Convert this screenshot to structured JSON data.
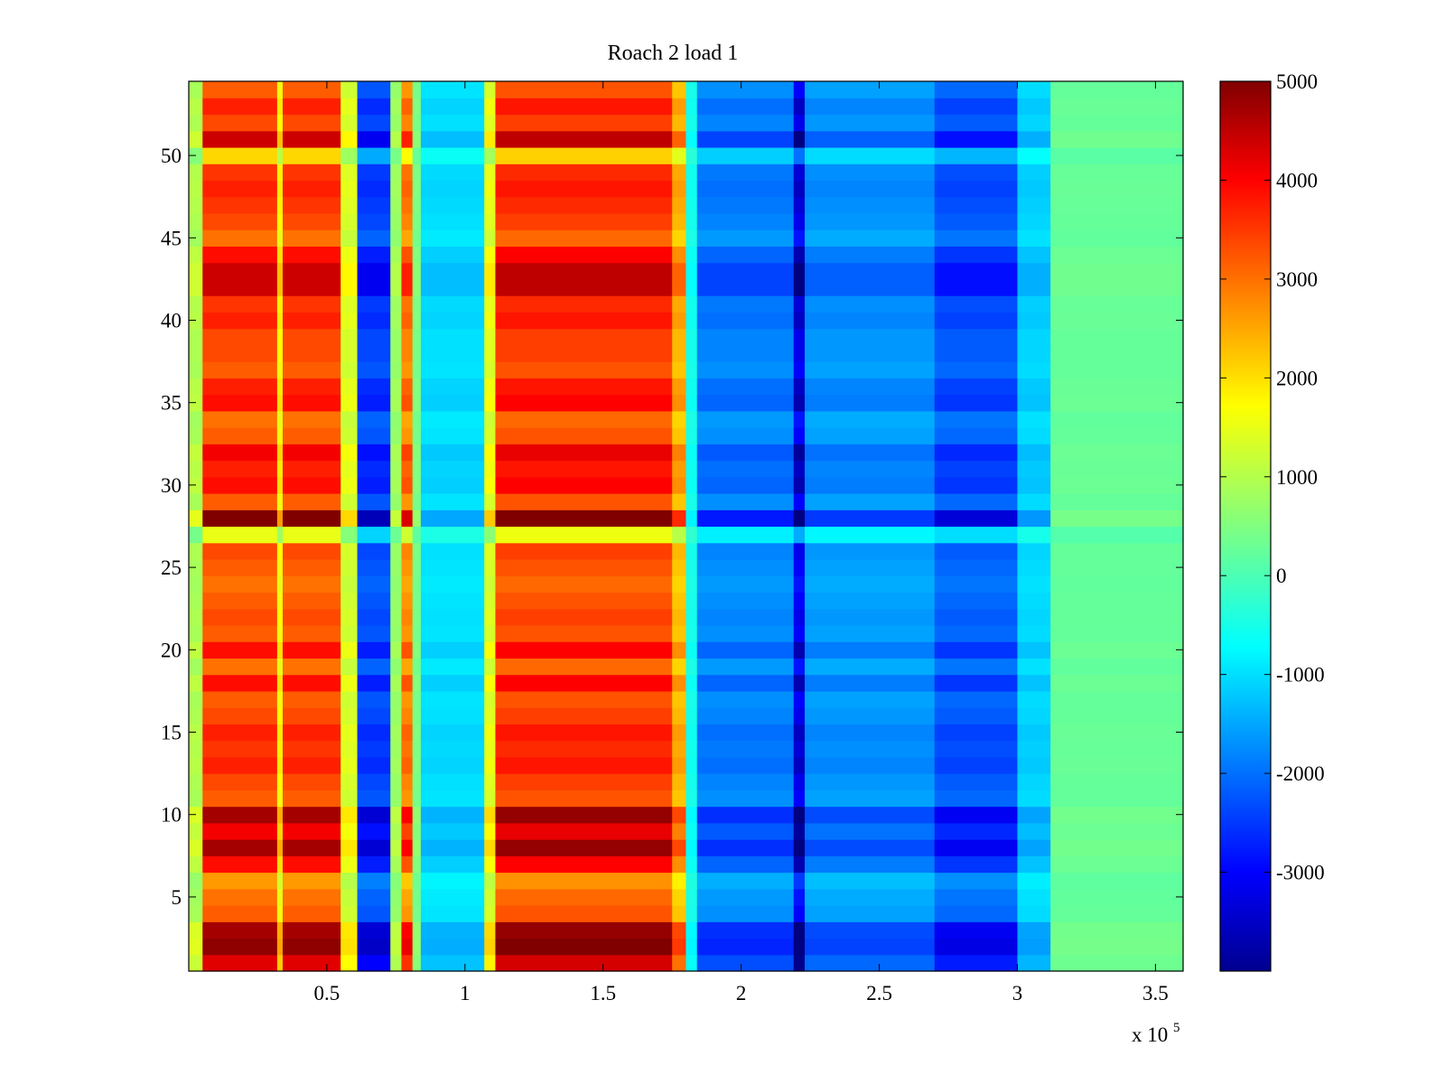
{
  "chart_data": {
    "type": "heatmap",
    "title": "Roach 2 load 1",
    "xlabel": "",
    "ylabel": "",
    "x_multiplier_label": {
      "base": "x 10",
      "exponent": "5"
    },
    "xlim": [
      0,
      360000
    ],
    "ylim": [
      0.5,
      54.5
    ],
    "x_ticks": [
      {
        "value": 50000,
        "label": "0.5"
      },
      {
        "value": 100000,
        "label": "1"
      },
      {
        "value": 150000,
        "label": "1.5"
      },
      {
        "value": 200000,
        "label": "2"
      },
      {
        "value": 250000,
        "label": "2.5"
      },
      {
        "value": 300000,
        "label": "3"
      },
      {
        "value": 350000,
        "label": "3.5"
      }
    ],
    "y_ticks": [
      {
        "value": 5,
        "label": "5"
      },
      {
        "value": 10,
        "label": "10"
      },
      {
        "value": 15,
        "label": "15"
      },
      {
        "value": 20,
        "label": "20"
      },
      {
        "value": 25,
        "label": "25"
      },
      {
        "value": 30,
        "label": "30"
      },
      {
        "value": 35,
        "label": "35"
      },
      {
        "value": 40,
        "label": "40"
      },
      {
        "value": 45,
        "label": "45"
      },
      {
        "value": 50,
        "label": "50"
      }
    ],
    "colorbar": {
      "colormap": "jet",
      "range": [
        -4000,
        5000
      ],
      "ticks": [
        {
          "value": 5000,
          "label": "5000"
        },
        {
          "value": 4000,
          "label": "4000"
        },
        {
          "value": 3000,
          "label": "3000"
        },
        {
          "value": 2000,
          "label": "2000"
        },
        {
          "value": 1000,
          "label": "1000"
        },
        {
          "value": 0,
          "label": "0"
        },
        {
          "value": -1000,
          "label": "-1000"
        },
        {
          "value": -2000,
          "label": "-2000"
        },
        {
          "value": -3000,
          "label": "-3000"
        }
      ]
    },
    "rows": 54,
    "column_bands": [
      {
        "x_start": 0,
        "x_end": 5000,
        "base": 1000
      },
      {
        "x_start": 5000,
        "x_end": 32000,
        "base": 3600
      },
      {
        "x_start": 32000,
        "x_end": 34000,
        "base": 1800
      },
      {
        "x_start": 34000,
        "x_end": 55000,
        "base": 3600
      },
      {
        "x_start": 55000,
        "x_end": 61000,
        "base": 1400
      },
      {
        "x_start": 61000,
        "x_end": 73000,
        "base": -2500
      },
      {
        "x_start": 73000,
        "x_end": 77000,
        "base": 800
      },
      {
        "x_start": 77000,
        "x_end": 81000,
        "base": 3000
      },
      {
        "x_start": 81000,
        "x_end": 84000,
        "base": 500
      },
      {
        "x_start": 84000,
        "x_end": 107000,
        "base": -1000
      },
      {
        "x_start": 107000,
        "x_end": 111000,
        "base": 1500
      },
      {
        "x_start": 111000,
        "x_end": 175000,
        "base": 3700
      },
      {
        "x_start": 175000,
        "x_end": 180000,
        "base": 2500
      },
      {
        "x_start": 180000,
        "x_end": 184000,
        "base": -500
      },
      {
        "x_start": 184000,
        "x_end": 219000,
        "base": -1900
      },
      {
        "x_start": 219000,
        "x_end": 223000,
        "base": -3400
      },
      {
        "x_start": 223000,
        "x_end": 270000,
        "base": -1700
      },
      {
        "x_start": 270000,
        "x_end": 300000,
        "base": -2300
      },
      {
        "x_start": 300000,
        "x_end": 312000,
        "base": -1100
      },
      {
        "x_start": 312000,
        "x_end": 360000,
        "base": 300
      }
    ],
    "row_intensity": [
      1.15,
      1.35,
      1.3,
      0.85,
      0.8,
      0.7,
      1.05,
      1.3,
      1.1,
      1.3,
      0.85,
      0.9,
      1.0,
      0.95,
      1.0,
      0.9,
      0.85,
      1.05,
      0.8,
      1.05,
      0.85,
      0.9,
      0.85,
      0.8,
      0.85,
      0.9,
      0.4,
      1.4,
      0.85,
      1.05,
      1.0,
      1.1,
      0.85,
      0.8,
      1.05,
      1.0,
      0.85,
      0.9,
      0.9,
      1.0,
      0.95,
      1.2,
      1.2,
      1.05,
      0.8,
      0.9,
      0.95,
      1.0,
      0.95,
      0.55,
      1.2,
      0.9,
      1.0,
      0.85
    ]
  }
}
